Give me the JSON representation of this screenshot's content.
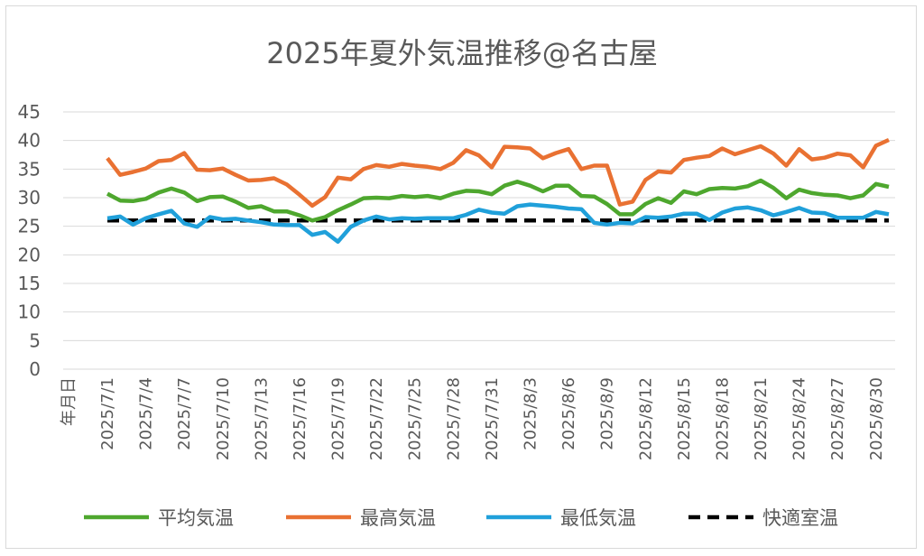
{
  "chart_data": {
    "type": "line",
    "title": "2025年夏外気温推移@名古屋",
    "xlabel": "年月日",
    "ylabel": "",
    "ylim": [
      0,
      45
    ],
    "yticks": [
      0,
      5,
      10,
      15,
      20,
      25,
      30,
      35,
      40,
      45
    ],
    "grid": true,
    "legend_position": "bottom",
    "x": [
      "2025/7/1",
      "2025/7/2",
      "2025/7/3",
      "2025/7/4",
      "2025/7/5",
      "2025/7/6",
      "2025/7/7",
      "2025/7/8",
      "2025/7/9",
      "2025/7/10",
      "2025/7/11",
      "2025/7/12",
      "2025/7/13",
      "2025/7/14",
      "2025/7/15",
      "2025/7/16",
      "2025/7/17",
      "2025/7/18",
      "2025/7/19",
      "2025/7/20",
      "2025/7/21",
      "2025/7/22",
      "2025/7/23",
      "2025/7/24",
      "2025/7/25",
      "2025/7/26",
      "2025/7/27",
      "2025/7/28",
      "2025/7/29",
      "2025/7/30",
      "2025/7/31",
      "2025/8/1",
      "2025/8/2",
      "2025/8/3",
      "2025/8/4",
      "2025/8/5",
      "2025/8/6",
      "2025/8/7",
      "2025/8/8",
      "2025/8/9",
      "2025/8/10",
      "2025/8/11",
      "2025/8/12",
      "2025/8/13",
      "2025/8/14",
      "2025/8/15",
      "2025/8/16",
      "2025/8/17",
      "2025/8/18",
      "2025/8/19",
      "2025/8/20",
      "2025/8/21",
      "2025/8/22",
      "2025/8/23",
      "2025/8/24",
      "2025/8/25",
      "2025/8/26",
      "2025/8/27",
      "2025/8/28",
      "2025/8/29",
      "2025/8/30",
      "2025/8/31"
    ],
    "x_tick_labels": [
      "2025/7/1",
      "2025/7/4",
      "2025/7/7",
      "2025/7/10",
      "2025/7/13",
      "2025/7/16",
      "2025/7/19",
      "2025/7/22",
      "2025/7/25",
      "2025/7/28",
      "2025/7/31",
      "2025/8/3",
      "2025/8/6",
      "2025/8/9",
      "2025/8/12",
      "2025/8/15",
      "2025/8/18",
      "2025/8/21",
      "2025/8/24",
      "2025/8/27",
      "2025/8/30"
    ],
    "series": [
      {
        "name": "平均気温",
        "color": "#4ea72e",
        "dashed": false,
        "values": [
          30.7,
          29.5,
          29.4,
          29.8,
          30.9,
          31.6,
          30.9,
          29.4,
          30.1,
          30.2,
          29.3,
          28.2,
          28.5,
          27.6,
          27.6,
          26.9,
          26.0,
          26.6,
          27.8,
          28.8,
          29.9,
          30.0,
          29.9,
          30.3,
          30.1,
          30.3,
          29.9,
          30.7,
          31.2,
          31.1,
          30.6,
          32.1,
          32.8,
          32.1,
          31.1,
          32.1,
          32.1,
          30.3,
          30.2,
          28.9,
          27.1,
          27.1,
          28.9,
          29.9,
          29.1,
          31.1,
          30.6,
          31.5,
          31.7,
          31.6,
          32.0,
          33.0,
          31.7,
          29.9,
          31.4,
          30.8,
          30.5,
          30.4,
          29.9,
          30.4,
          32.4,
          31.9
        ]
      },
      {
        "name": "最高気温",
        "color": "#e97132",
        "dashed": false,
        "values": [
          36.9,
          34.0,
          34.5,
          35.1,
          36.4,
          36.6,
          37.8,
          34.9,
          34.8,
          35.1,
          34.0,
          33.0,
          33.1,
          33.4,
          32.3,
          30.5,
          28.6,
          30.1,
          33.5,
          33.2,
          35.0,
          35.7,
          35.4,
          35.9,
          35.6,
          35.4,
          35.0,
          36.1,
          38.3,
          37.4,
          35.3,
          38.9,
          38.8,
          38.6,
          36.9,
          37.8,
          38.5,
          35.0,
          35.6,
          35.6,
          28.8,
          29.3,
          33.1,
          34.6,
          34.4,
          36.6,
          37.0,
          37.3,
          38.6,
          37.6,
          38.3,
          39.0,
          37.7,
          35.6,
          38.5,
          36.7,
          37.0,
          37.7,
          37.4,
          35.3,
          39.1,
          40.1
        ]
      },
      {
        "name": "最低気温",
        "color": "#20a0da",
        "dashed": false,
        "values": [
          26.4,
          26.7,
          25.3,
          26.4,
          27.1,
          27.7,
          25.5,
          24.9,
          26.6,
          26.2,
          26.3,
          26.0,
          25.7,
          25.3,
          25.2,
          25.2,
          23.5,
          24.0,
          22.3,
          24.9,
          26.0,
          26.7,
          26.2,
          26.4,
          26.3,
          26.4,
          26.4,
          26.4,
          27.0,
          27.9,
          27.4,
          27.2,
          28.5,
          28.8,
          28.6,
          28.4,
          28.1,
          28.0,
          25.6,
          25.3,
          25.6,
          25.5,
          26.6,
          26.5,
          26.7,
          27.2,
          27.2,
          26.1,
          27.4,
          28.1,
          28.3,
          27.8,
          26.9,
          27.5,
          28.2,
          27.4,
          27.3,
          26.5,
          26.5,
          26.5,
          27.5,
          27.1
        ]
      },
      {
        "name": "快適室温",
        "color": "#000000",
        "dashed": true,
        "values": [
          26,
          26,
          26,
          26,
          26,
          26,
          26,
          26,
          26,
          26,
          26,
          26,
          26,
          26,
          26,
          26,
          26,
          26,
          26,
          26,
          26,
          26,
          26,
          26,
          26,
          26,
          26,
          26,
          26,
          26,
          26,
          26,
          26,
          26,
          26,
          26,
          26,
          26,
          26,
          26,
          26,
          26,
          26,
          26,
          26,
          26,
          26,
          26,
          26,
          26,
          26,
          26,
          26,
          26,
          26,
          26,
          26,
          26,
          26,
          26,
          26,
          26
        ]
      }
    ]
  }
}
